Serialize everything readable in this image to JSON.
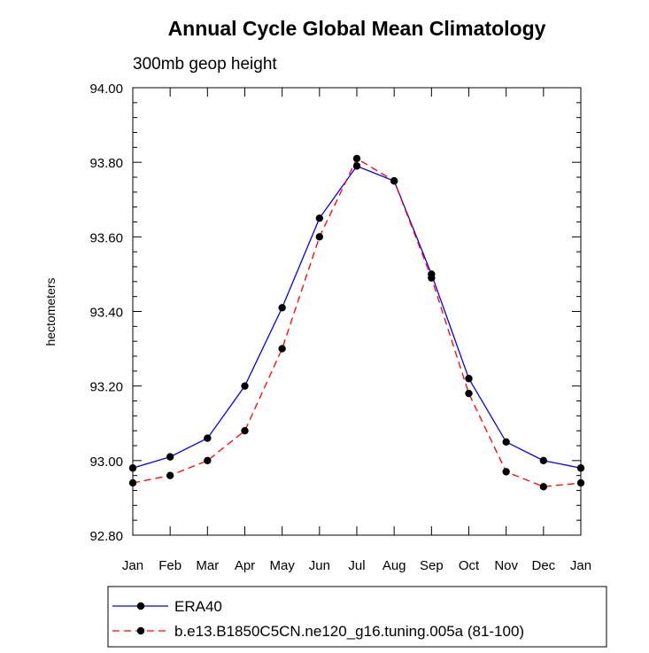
{
  "chart_data": {
    "type": "line",
    "title": "Annual Cycle Global Mean Climatology",
    "subtitle": "300mb geop height",
    "xlabel": "",
    "ylabel": "hectometers",
    "categories": [
      "Jan",
      "Feb",
      "Mar",
      "Apr",
      "May",
      "Jun",
      "Jul",
      "Aug",
      "Sep",
      "Oct",
      "Nov",
      "Dec",
      "Jan"
    ],
    "ylim": [
      92.8,
      94.0
    ],
    "yticks": [
      "92.80",
      "93.00",
      "93.20",
      "93.40",
      "93.60",
      "93.80",
      "94.00"
    ],
    "series": [
      {
        "name": "ERA40",
        "color": "#0000ff",
        "dash": "solid",
        "values": [
          92.98,
          93.01,
          93.06,
          93.2,
          93.41,
          93.65,
          93.79,
          93.75,
          93.5,
          93.22,
          93.05,
          93.0,
          92.98
        ]
      },
      {
        "name": "b.e13.B1850C5CN.ne120_g16.tuning.005a (81-100)",
        "color": "#ff0000",
        "dash": "dashed",
        "values": [
          92.94,
          92.96,
          93.0,
          93.08,
          93.3,
          93.6,
          93.81,
          93.75,
          93.49,
          93.18,
          92.97,
          92.93,
          92.94
        ]
      }
    ],
    "legend_position": "bottom"
  }
}
